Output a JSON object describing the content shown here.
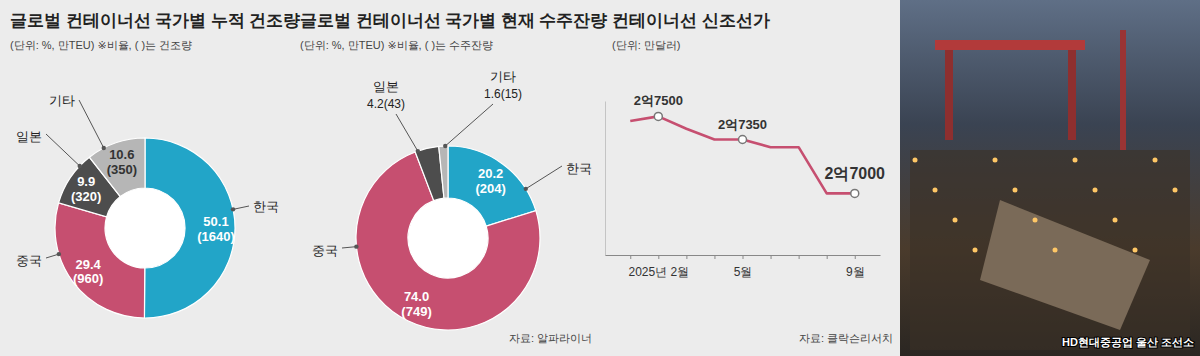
{
  "chart_data": [
    {
      "type": "pie",
      "title": "글로벌 컨테이너선 국가별 누적 건조량",
      "subtitle": "(단위: %, 만TEU) ※비율, ( )는 건조량",
      "categories": [
        "한국",
        "중국",
        "일본",
        "기타"
      ],
      "values": [
        50.1,
        29.4,
        9.9,
        10.6
      ],
      "volume_labels": [
        "(1640)",
        "(960)",
        "(320)",
        "(350)"
      ],
      "colors": [
        "#22a5c8",
        "#c64f70",
        "#4d4d4d",
        "#b6b6b6"
      ],
      "data_labels": true
    },
    {
      "type": "pie",
      "title": "글로벌 컨테이너선 국가별 현재 수주잔량",
      "subtitle": "(단위: %, 만TEU) ※비율, ( )는 수주잔량",
      "categories": [
        "한국",
        "중국",
        "일본",
        "기타"
      ],
      "values": [
        20.2,
        74.0,
        4.2,
        1.6
      ],
      "value_labels": [
        "20.2",
        "74.0",
        "4.2",
        "1.6"
      ],
      "volume_labels": [
        "(204)",
        "(749)",
        "(43)",
        "(15)"
      ],
      "colors": [
        "#22a5c8",
        "#c64f70",
        "#4d4d4d",
        "#b6b6b6"
      ],
      "data_labels": true,
      "source": "자료: 알파라이너"
    },
    {
      "type": "line",
      "title": "컨테이너선 신조선가",
      "subtitle": "(단위: 만달러)",
      "categories": [
        null,
        "2025년 2월",
        null,
        null,
        "5월",
        null,
        null,
        null,
        "9월"
      ],
      "values": [
        27470,
        27500,
        27420,
        27350,
        27350,
        27300,
        27300,
        27000,
        27000
      ],
      "value_labels": [
        null,
        "2억7500",
        null,
        null,
        "2억7350",
        null,
        null,
        null,
        "2억7000"
      ],
      "color": "#c64f70",
      "marker": "circle",
      "ylim": [
        26600,
        27600
      ],
      "yticks": [],
      "tick_labels": "x",
      "data_labels": true,
      "source": "자료: 클락슨리서치"
    }
  ],
  "photo": {
    "caption": "HD현대중공업 울산 조선소"
  }
}
